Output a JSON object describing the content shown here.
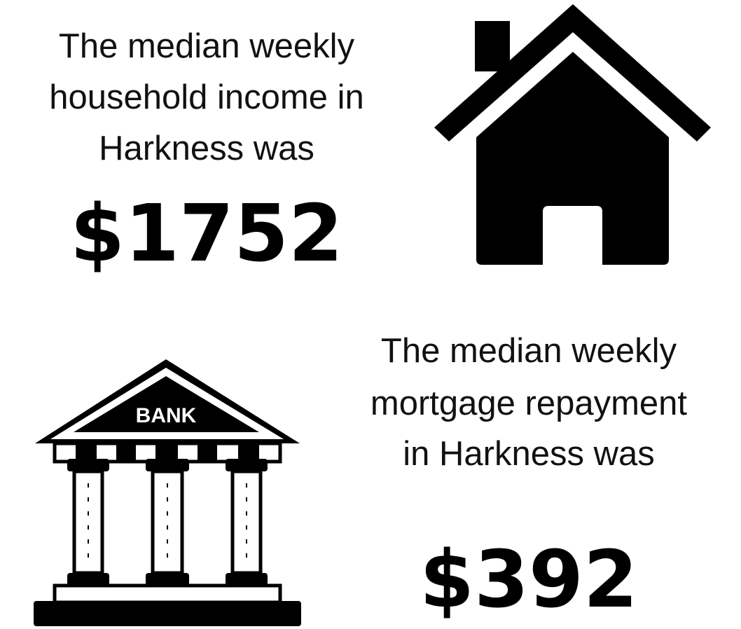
{
  "sections": [
    {
      "lines": [
        "The median weekly",
        "household income in",
        "Harkness was"
      ],
      "value": "$1752"
    },
    {
      "lines": [
        "The median weekly",
        "mortgage repayment",
        "in Harkness was"
      ],
      "value": "$392"
    }
  ],
  "bank_icon": {
    "label": "BANK"
  }
}
